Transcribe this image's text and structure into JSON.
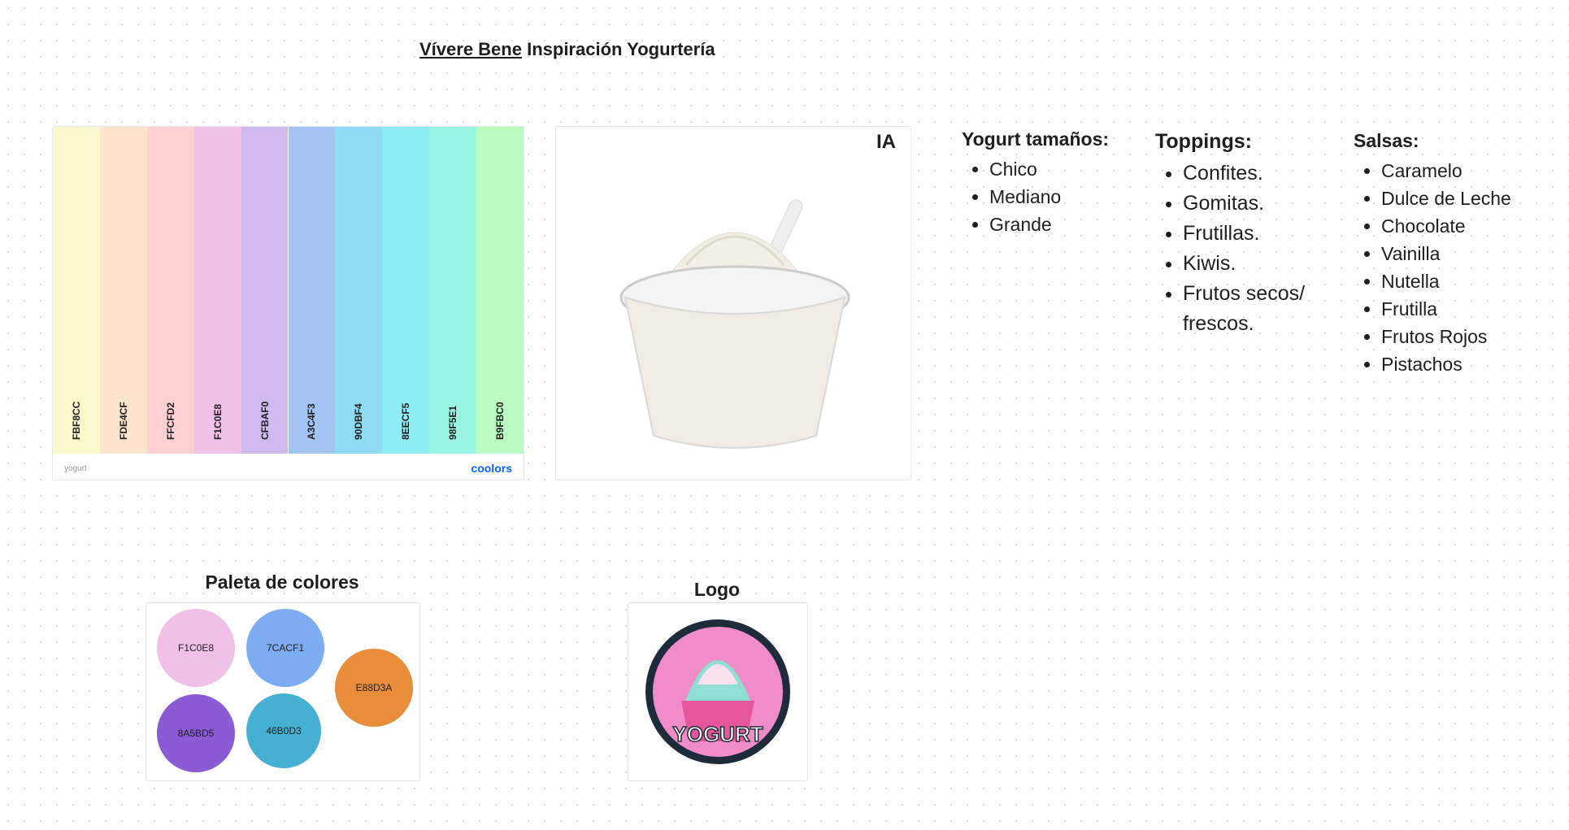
{
  "header": {
    "title_link": "Vívere Bene",
    "title_rest": "Inspiración Yogurtería"
  },
  "palette_card": {
    "swatches": [
      "FBF8CC",
      "FDE4CF",
      "FFCFD2",
      "F1C0E8",
      "CFBAF0",
      "A3C4F3",
      "90DBF4",
      "8EECF5",
      "98F5E1",
      "B9FBC0"
    ],
    "name": "yogurt",
    "brand": "coolors"
  },
  "image_card": {
    "label": "IA"
  },
  "lists": [
    {
      "title": "Yogurt tamaños:",
      "items": [
        "Chico",
        "Mediano",
        "Grande"
      ]
    },
    {
      "title": "Toppings:",
      "items": [
        "Confites.",
        "Gomitas.",
        "Frutillas.",
        "Kiwis.",
        "Frutos secos/ frescos."
      ]
    },
    {
      "title": "Salsas:",
      "items": [
        "Caramelo",
        "Dulce de Leche",
        "Chocolate",
        "Vainilla",
        "Nutella",
        "Frutilla",
        "Frutos Rojos",
        "Pistachos"
      ]
    }
  ],
  "color_palette": {
    "title": "Paleta de colores",
    "colors": [
      "F1C0E8",
      "7CACF1",
      "E88D3A",
      "8A5BD5",
      "46B0D3"
    ]
  },
  "logo": {
    "title": "Logo",
    "text": "YOGURT"
  }
}
